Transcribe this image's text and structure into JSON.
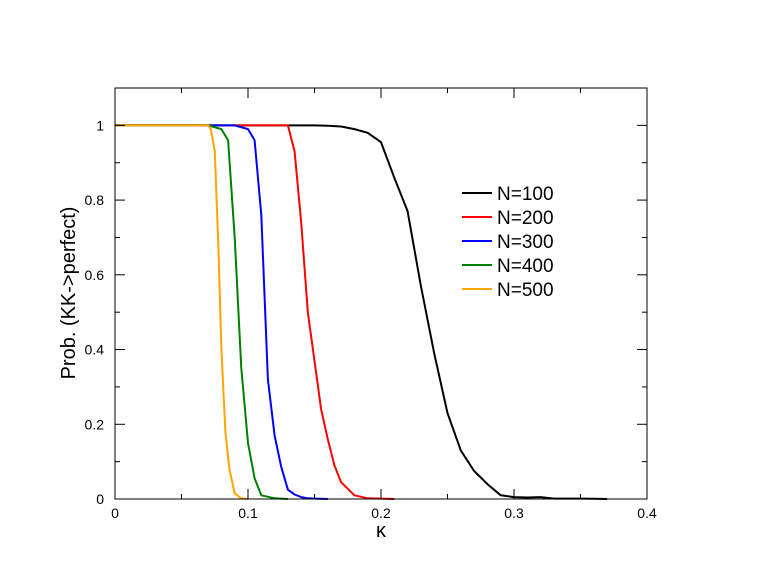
{
  "chart_data": {
    "type": "line",
    "title": "",
    "xlabel": "κ",
    "ylabel": "Prob. (KK->perfect)",
    "xlim": [
      0,
      0.4
    ],
    "ylim": [
      0,
      1.1
    ],
    "x_ticks": [
      0,
      0.1,
      0.2,
      0.3,
      0.4
    ],
    "x_tick_labels": [
      "0",
      "0.1",
      "0.2",
      "0.3",
      "0.4"
    ],
    "y_ticks": [
      0,
      0.2,
      0.4,
      0.6,
      0.8,
      1
    ],
    "y_tick_labels": [
      "0",
      "0.2",
      "0.4",
      "0.6",
      "0.8",
      "1"
    ],
    "grid": false,
    "legend_position": "upper-right",
    "series": [
      {
        "name": "N=100",
        "color": "#000000",
        "x": [
          0,
          0.05,
          0.1,
          0.15,
          0.16,
          0.17,
          0.18,
          0.19,
          0.2,
          0.21,
          0.22,
          0.23,
          0.24,
          0.25,
          0.26,
          0.27,
          0.28,
          0.29,
          0.3,
          0.31,
          0.32,
          0.33,
          0.34,
          0.35,
          0.36,
          0.37
        ],
        "y": [
          1,
          1,
          1,
          1,
          0.999,
          0.997,
          0.99,
          0.98,
          0.955,
          0.86,
          0.77,
          0.57,
          0.39,
          0.23,
          0.13,
          0.075,
          0.04,
          0.01,
          0.005,
          0.004,
          0.005,
          0.001,
          0.001,
          0.001,
          0.0005,
          0
        ]
      },
      {
        "name": "N=200",
        "color": "#ff0000",
        "x": [
          0,
          0.1,
          0.12,
          0.13,
          0.135,
          0.14,
          0.145,
          0.15,
          0.155,
          0.16,
          0.165,
          0.17,
          0.18,
          0.19,
          0.2,
          0.21
        ],
        "y": [
          1,
          1,
          1,
          1,
          0.93,
          0.74,
          0.5,
          0.37,
          0.24,
          0.16,
          0.09,
          0.045,
          0.01,
          0.002,
          0.001,
          0
        ]
      },
      {
        "name": "N=300",
        "color": "#0000ff",
        "x": [
          0,
          0.08,
          0.09,
          0.1,
          0.105,
          0.11,
          0.115,
          0.12,
          0.125,
          0.13,
          0.135,
          0.14,
          0.145,
          0.15,
          0.16
        ],
        "y": [
          1,
          1,
          1,
          0.99,
          0.96,
          0.76,
          0.32,
          0.17,
          0.085,
          0.025,
          0.012,
          0.005,
          0.002,
          0.001,
          0
        ]
      },
      {
        "name": "N=400",
        "color": "#008000",
        "x": [
          0,
          0.07,
          0.08,
          0.085,
          0.09,
          0.095,
          0.1,
          0.105,
          0.11,
          0.12,
          0.13
        ],
        "y": [
          1,
          1,
          0.99,
          0.96,
          0.7,
          0.35,
          0.15,
          0.055,
          0.01,
          0.002,
          0
        ]
      },
      {
        "name": "N=500",
        "color": "#ffa500",
        "x": [
          0,
          0.06,
          0.07,
          0.072,
          0.075,
          0.078,
          0.08,
          0.083,
          0.086,
          0.09,
          0.095,
          0.1
        ],
        "y": [
          1,
          1,
          1,
          0.99,
          0.93,
          0.65,
          0.4,
          0.18,
          0.08,
          0.015,
          0.002,
          0
        ]
      }
    ]
  }
}
